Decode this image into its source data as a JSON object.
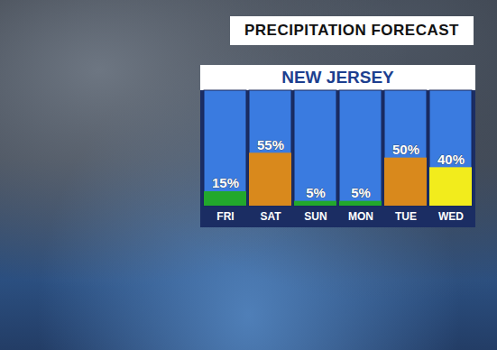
{
  "chart_data": {
    "type": "bar",
    "title": "PRECIPITATION FORECAST",
    "subtitle": "NEW JERSEY",
    "categories": [
      "FRI",
      "SAT",
      "SUN",
      "MON",
      "TUE",
      "WED"
    ],
    "values": [
      15,
      55,
      5,
      5,
      50,
      40
    ],
    "value_labels": [
      "15%",
      "55%",
      "5%",
      "5%",
      "50%",
      "40%"
    ],
    "colors": [
      "#22a82c",
      "#d9891c",
      "#22a82c",
      "#22a82c",
      "#d9891c",
      "#f2ec1c"
    ],
    "ylim": [
      0,
      120
    ],
    "data_labels": true,
    "tick_labels": "x"
  }
}
